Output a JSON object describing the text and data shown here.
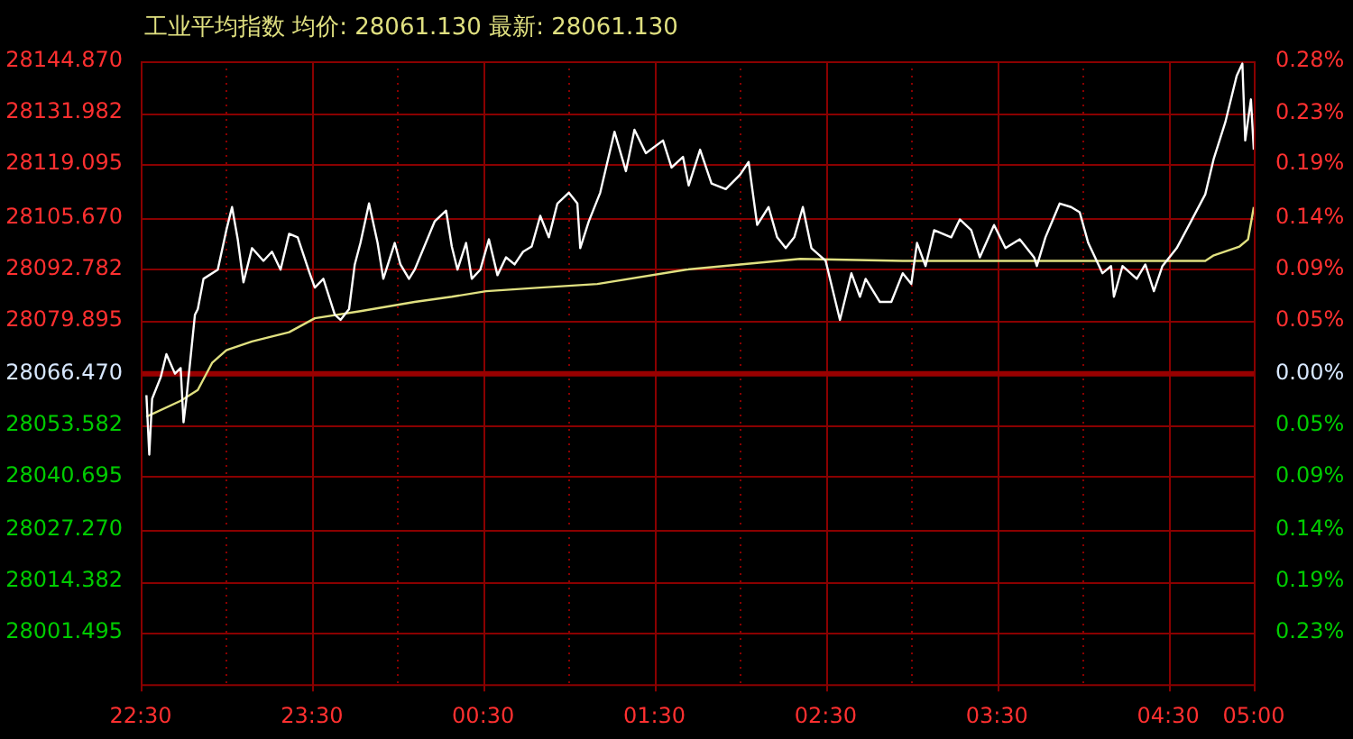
{
  "chart_data": {
    "type": "line",
    "title": "工业平均指数 均价: 28061.130 最新: 28061.130",
    "xlim": [
      "--01-01T22:30",
      "--01-02T05:00"
    ],
    "xticks": [
      {
        "value": "--01-01T22:30",
        "label": "22:30"
      },
      {
        "value": "--01-01T23:00",
        "label": null
      },
      {
        "value": "--01-01T23:30",
        "label": "23:30"
      },
      {
        "value": "--01-02T00:00",
        "label": null
      },
      {
        "value": "--01-02T00:30",
        "label": "00:30"
      },
      {
        "value": "--01-02T01:00",
        "label": null
      },
      {
        "value": "--01-02T01:30",
        "label": "01:30"
      },
      {
        "value": "--01-02T02:00",
        "label": null
      },
      {
        "value": "--01-02T02:30",
        "label": "02:30"
      },
      {
        "value": "--01-02T03:00",
        "label": null
      },
      {
        "value": "--01-02T03:30",
        "label": "03:30"
      },
      {
        "value": "--01-02T04:00",
        "label": null
      },
      {
        "value": "--01-02T04:30",
        "label": "04:30"
      },
      {
        "value": "--01-02T05:00",
        "label": "05:00"
      }
    ],
    "ylim": [
      27988.6,
      28144.87
    ],
    "yticks": [
      {
        "value": 28144.87,
        "label": "28144.870"
      },
      {
        "value": 28131.982,
        "label": "28131.982"
      },
      {
        "value": 28119.095,
        "label": "28119.095"
      },
      {
        "value": 28105.67,
        "label": "28105.670"
      },
      {
        "value": 28092.782,
        "label": "28092.782"
      },
      {
        "value": 28079.895,
        "label": "28079.895"
      },
      {
        "value": 28066.47,
        "label": "28066.470"
      },
      {
        "value": 28053.582,
        "label": "28053.582"
      },
      {
        "value": 28040.695,
        "label": "28040.695"
      },
      {
        "value": 28027.27,
        "label": "28027.270"
      },
      {
        "value": 28014.382,
        "label": "28014.382"
      },
      {
        "value": 28001.495,
        "label": "28001.495"
      }
    ],
    "y2lim": [
      -0.2775,
      0.2793
    ],
    "y2ticks": [
      {
        "value": 0.2793,
        "label": "0.28%"
      },
      {
        "value": 0.233,
        "label": "0.23%"
      },
      {
        "value": 0.1875,
        "label": "0.19%"
      },
      {
        "value": 0.1397,
        "label": "0.14%"
      },
      {
        "value": 0.0938,
        "label": "0.09%"
      },
      {
        "value": 0.0478,
        "label": "0.05%"
      },
      {
        "value": 0,
        "label": "0.00%"
      },
      {
        "value": -0.0459,
        "label": "0.05%"
      },
      {
        "value": -0.0918,
        "label": "0.09%"
      },
      {
        "value": -0.1397,
        "label": "0.14%"
      },
      {
        "value": -0.1856,
        "label": "0.19%"
      },
      {
        "value": -0.2315,
        "label": "0.23%"
      }
    ],
    "grid": true,
    "marker": "none",
    "line_style": "solid",
    "ref_lines": [
      {
        "axis": "y",
        "value": 28066.47,
        "color": "#990000"
      }
    ],
    "series": [
      {
        "color": "#ffffff",
        "x": [
          "--01-01T22:32",
          "--01-01T22:33",
          "--01-01T22:34",
          "--01-01T22:37",
          "--01-01T22:39",
          "--01-01T22:42",
          "--01-01T22:44",
          "--01-01T22:45",
          "--01-01T22:46",
          "--01-01T22:49",
          "--01-01T22:50",
          "--01-01T22:52",
          "--01-01T22:57",
          "--01-01T23:00",
          "--01-01T23:02",
          "--01-01T23:04",
          "--01-01T23:06",
          "--01-01T23:09",
          "--01-01T23:13",
          "--01-01T23:16",
          "--01-01T23:19",
          "--01-01T23:22",
          "--01-01T23:25",
          "--01-01T23:29",
          "--01-01T23:31",
          "--01-01T23:34",
          "--01-01T23:38",
          "--01-01T23:40",
          "--01-01T23:43",
          "--01-01T23:45",
          "--01-01T23:47",
          "--01-01T23:50",
          "--01-01T23:53",
          "--01-01T23:55",
          "--01-01T23:59",
          "--01-02T00:01",
          "--01-02T00:04",
          "--01-02T00:06",
          "--01-02T00:13",
          "--01-02T00:17",
          "--01-02T00:19",
          "--01-02T00:21",
          "--01-02T00:24",
          "--01-02T00:26",
          "--01-02T00:29",
          "--01-02T00:32",
          "--01-02T00:35",
          "--01-02T00:38",
          "--01-02T00:41",
          "--01-02T00:44",
          "--01-02T00:47",
          "--01-02T00:50",
          "--01-02T00:53",
          "--01-02T00:56",
          "--01-02T01:00",
          "--01-02T01:03",
          "--01-02T01:04",
          "--01-02T01:07",
          "--01-02T01:11",
          "--01-02T01:16",
          "--01-02T01:20",
          "--01-02T01:23",
          "--01-02T01:27",
          "--01-02T01:33",
          "--01-02T01:36",
          "--01-02T01:40",
          "--01-02T01:42",
          "--01-02T01:46",
          "--01-02T01:50",
          "--01-02T01:55",
          "--01-02T02:00",
          "--01-02T02:03",
          "--01-02T02:06",
          "--01-02T02:10",
          "--01-02T02:13",
          "--01-02T02:16",
          "--01-02T02:19",
          "--01-02T02:22",
          "--01-02T02:25",
          "--01-02T02:30",
          "--01-02T02:35",
          "--01-02T02:39",
          "--01-02T02:42",
          "--01-02T02:44",
          "--01-02T02:49",
          "--01-02T02:53",
          "--01-02T02:57",
          "--01-02T03:00",
          "--01-02T03:02",
          "--01-02T03:05",
          "--01-02T03:08",
          "--01-02T03:14",
          "--01-02T03:17",
          "--01-02T03:21",
          "--01-02T03:24",
          "--01-02T03:29",
          "--01-02T03:33",
          "--01-02T03:38",
          "--01-02T03:43",
          "--01-02T03:44",
          "--01-02T03:47",
          "--01-02T03:52",
          "--01-02T03:56",
          "--01-02T03:59",
          "--01-02T04:02",
          "--01-02T04:07",
          "--01-02T04:10",
          "--01-02T04:11",
          "--01-02T04:14",
          "--01-02T04:19",
          "--01-02T04:22",
          "--01-02T04:25",
          "--01-02T04:28",
          "--01-02T04:33",
          "--01-02T04:38",
          "--01-02T04:43",
          "--01-02T04:46",
          "--01-02T04:50",
          "--01-02T04:54",
          "--01-02T04:56",
          "--01-02T04:57",
          "--01-02T04:59",
          "--01-02T05:00"
        ],
        "values": [
          28061.1,
          28046.2,
          28060.2,
          28065.6,
          28071.4,
          28066.5,
          28067.9,
          28054.3,
          28060.2,
          28081.3,
          28082.7,
          28090.3,
          28092.6,
          28102.5,
          28108.3,
          28100.2,
          28089.4,
          28098.0,
          28094.8,
          28097.1,
          28092.6,
          28101.6,
          28100.7,
          28092.1,
          28088.1,
          28090.3,
          28081.3,
          28080.0,
          28082.7,
          28093.9,
          28099.3,
          28109.2,
          28099.3,
          28090.3,
          28099.3,
          28093.9,
          28090.3,
          28092.6,
          28104.7,
          28107.4,
          28098.4,
          28092.6,
          28099.3,
          28090.3,
          28092.6,
          28100.2,
          28091.2,
          28095.7,
          28093.9,
          28097.1,
          28098.4,
          28106.1,
          28100.7,
          28109.2,
          28111.9,
          28109.2,
          28098.0,
          28104.7,
          28111.9,
          28127.2,
          28117.3,
          28127.7,
          28121.8,
          28125.0,
          28118.2,
          28120.9,
          28113.7,
          28122.7,
          28114.2,
          28112.8,
          28116.4,
          28119.6,
          28103.8,
          28108.3,
          28100.7,
          28098.0,
          28100.7,
          28108.3,
          28098.0,
          28094.8,
          28080.0,
          28091.7,
          28085.8,
          28090.3,
          28084.5,
          28084.5,
          28091.7,
          28089.0,
          28099.3,
          28093.5,
          28102.5,
          28100.7,
          28105.2,
          28102.5,
          28095.7,
          28103.8,
          28098.0,
          28100.2,
          28095.7,
          28093.5,
          28100.7,
          28109.2,
          28108.3,
          28107.0,
          28099.3,
          28091.7,
          28093.5,
          28085.8,
          28093.5,
          28090.3,
          28093.9,
          28087.2,
          28093.5,
          28098.0,
          28104.7,
          28111.5,
          28120.5,
          28129.5,
          28141.2,
          28144.3,
          28125.0,
          28135.3,
          28122.7
        ]
      },
      {
        "color": "#e0e080",
        "x": [
          "--01-01T22:32",
          "--01-01T22:44",
          "--01-01T22:50",
          "--01-01T22:55",
          "--01-01T23:00",
          "--01-01T23:09",
          "--01-01T23:22",
          "--01-01T23:31",
          "--01-01T23:47",
          "--01-02T00:06",
          "--01-02T00:19",
          "--01-02T00:31",
          "--01-02T00:50",
          "--01-02T01:10",
          "--01-02T01:41",
          "--01-02T02:00",
          "--01-02T02:21",
          "--01-02T02:57",
          "--01-02T03:35",
          "--01-02T04:13",
          "--01-02T04:43",
          "--01-02T04:46",
          "--01-02T04:55",
          "--01-02T04:58",
          "--01-02T05:00"
        ],
        "values": [
          28055.7,
          28059.7,
          28062.4,
          28069.2,
          28072.4,
          28074.6,
          28076.9,
          28080.4,
          28082.2,
          28084.5,
          28085.8,
          28087.2,
          28088.1,
          28089.0,
          28092.6,
          28093.9,
          28095.3,
          28094.8,
          28094.8,
          28094.8,
          28094.8,
          28096.2,
          28098.4,
          28100.2,
          28108.3
        ]
      }
    ]
  }
}
